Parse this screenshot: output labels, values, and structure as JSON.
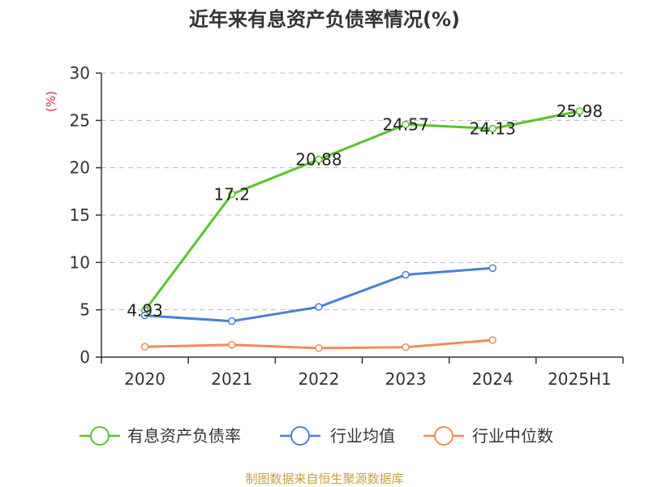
{
  "chart_data": {
    "type": "line",
    "title": "近年来有息资产负债率情况(%)",
    "ylabel": "(%)",
    "xlabel": "",
    "categories": [
      "2020",
      "2021",
      "2022",
      "2023",
      "2024",
      "2025H1"
    ],
    "ylim": [
      0,
      30
    ],
    "yticks": [
      0,
      5,
      10,
      15,
      20,
      25,
      30
    ],
    "grid": true,
    "legend_position": "bottom",
    "series": [
      {
        "name": "有息资产负债率",
        "color": "#5cc22b",
        "values": [
          4.93,
          17.2,
          20.88,
          24.57,
          24.13,
          25.98
        ],
        "labels": [
          "4.93",
          "17.2",
          "20.88",
          "24.57",
          "24.13",
          "25.98"
        ]
      },
      {
        "name": "行业均值",
        "color": "#4a7fd8",
        "values": [
          4.4,
          3.8,
          5.3,
          8.7,
          9.4,
          null
        ]
      },
      {
        "name": "行业中位数",
        "color": "#f28c5a",
        "values": [
          1.1,
          1.3,
          0.95,
          1.05,
          1.8,
          null
        ]
      }
    ],
    "source": "制图数据来自恒生聚源数据库",
    "colors": {
      "axis": "#333333",
      "grid": "#bbbbbb",
      "unit": "#e03030",
      "source": "#c8a040"
    }
  }
}
